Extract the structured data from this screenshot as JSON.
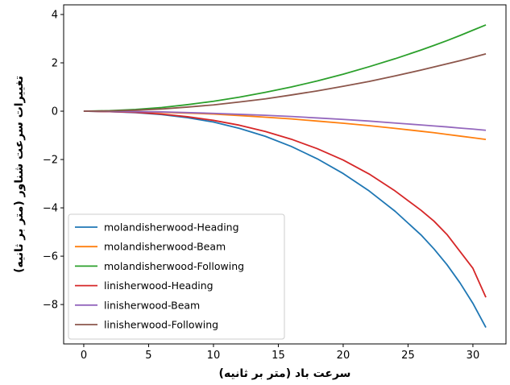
{
  "chart_data": {
    "type": "line",
    "xlabel": "سرعت باد (متر بر ثانیه)",
    "ylabel": "تغییرات سرعت شناور (متر بر ثانیه)",
    "xlim": [
      -1.55,
      32.55
    ],
    "ylim": [
      -9.63,
      4.4
    ],
    "xticks": [
      0,
      5,
      10,
      15,
      20,
      25,
      30
    ],
    "yticks": [
      -8,
      -6,
      -4,
      -2,
      0,
      2,
      4
    ],
    "grid": false,
    "legend_position": "lower-left",
    "x": [
      0,
      2,
      4,
      6,
      8,
      10,
      12,
      14,
      16,
      18,
      20,
      22,
      24,
      26,
      27,
      28,
      29,
      30,
      31
    ],
    "series": [
      {
        "name": "molandisherwood-Heading",
        "color": "#1f77b4",
        "values": [
          0,
          -0.02,
          -0.06,
          -0.14,
          -0.27,
          -0.45,
          -0.71,
          -1.04,
          -1.46,
          -1.97,
          -2.58,
          -3.3,
          -4.14,
          -5.12,
          -5.7,
          -6.35,
          -7.1,
          -7.95,
          -8.95
        ]
      },
      {
        "name": "molandisherwood-Beam",
        "color": "#ff7f0e",
        "values": [
          0,
          -0.01,
          -0.02,
          -0.05,
          -0.08,
          -0.12,
          -0.18,
          -0.25,
          -0.32,
          -0.41,
          -0.5,
          -0.6,
          -0.71,
          -0.83,
          -0.89,
          -0.96,
          -1.03,
          -1.1,
          -1.17
        ]
      },
      {
        "name": "molandisherwood-Following",
        "color": "#2ca02c",
        "values": [
          0,
          0.02,
          0.07,
          0.15,
          0.27,
          0.41,
          0.58,
          0.78,
          1.0,
          1.25,
          1.53,
          1.84,
          2.17,
          2.53,
          2.72,
          2.92,
          3.13,
          3.35,
          3.57
        ]
      },
      {
        "name": "linisherwood-Heading",
        "color": "#d62728",
        "values": [
          0,
          -0.02,
          -0.05,
          -0.12,
          -0.23,
          -0.38,
          -0.58,
          -0.84,
          -1.16,
          -1.55,
          -2.02,
          -2.6,
          -3.3,
          -4.1,
          -4.55,
          -5.1,
          -5.8,
          -6.5,
          -7.7
        ]
      },
      {
        "name": "linisherwood-Beam",
        "color": "#9467bd",
        "values": [
          0,
          -0.01,
          -0.02,
          -0.03,
          -0.06,
          -0.09,
          -0.13,
          -0.17,
          -0.22,
          -0.28,
          -0.34,
          -0.41,
          -0.49,
          -0.57,
          -0.61,
          -0.65,
          -0.7,
          -0.74,
          -0.79
        ]
      },
      {
        "name": "linisherwood-Following",
        "color": "#8c564b",
        "values": [
          0,
          0.01,
          0.04,
          0.09,
          0.17,
          0.26,
          0.38,
          0.51,
          0.67,
          0.84,
          1.03,
          1.23,
          1.46,
          1.7,
          1.83,
          1.96,
          2.09,
          2.23,
          2.37
        ]
      }
    ]
  }
}
